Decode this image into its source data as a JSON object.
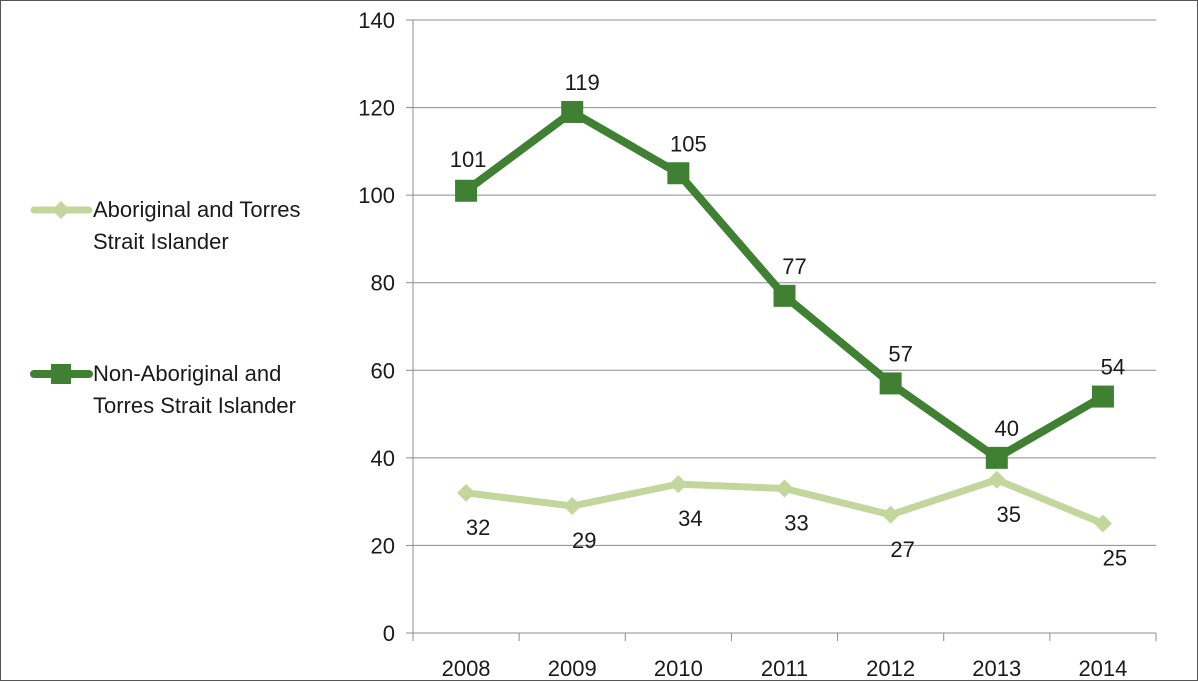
{
  "chart_data": {
    "type": "line",
    "title": "",
    "xlabel": "",
    "ylabel": "",
    "categories": [
      "2008",
      "2009",
      "2010",
      "2011",
      "2012",
      "2013",
      "2014"
    ],
    "ylim": [
      0,
      140
    ],
    "yticks": [
      0,
      20,
      40,
      60,
      80,
      100,
      120,
      140
    ],
    "grid": "horizontal",
    "legend_position": "left",
    "series": [
      {
        "name": "Aboriginal and Torres Strait Islander",
        "legend_lines": [
          "Aboriginal and Torres",
          "Strait Islander"
        ],
        "values": [
          32,
          29,
          34,
          33,
          27,
          35,
          25
        ],
        "color": "#c3d69b",
        "marker": "diamond",
        "label_position": "below"
      },
      {
        "name": "Non-Aboriginal and Torres Strait Islander",
        "legend_lines": [
          "Non-Aboriginal and",
          "Torres Strait Islander"
        ],
        "values": [
          101,
          119,
          105,
          77,
          57,
          40,
          54
        ],
        "color": "#3f8033",
        "marker": "square",
        "label_position": "above"
      }
    ]
  }
}
